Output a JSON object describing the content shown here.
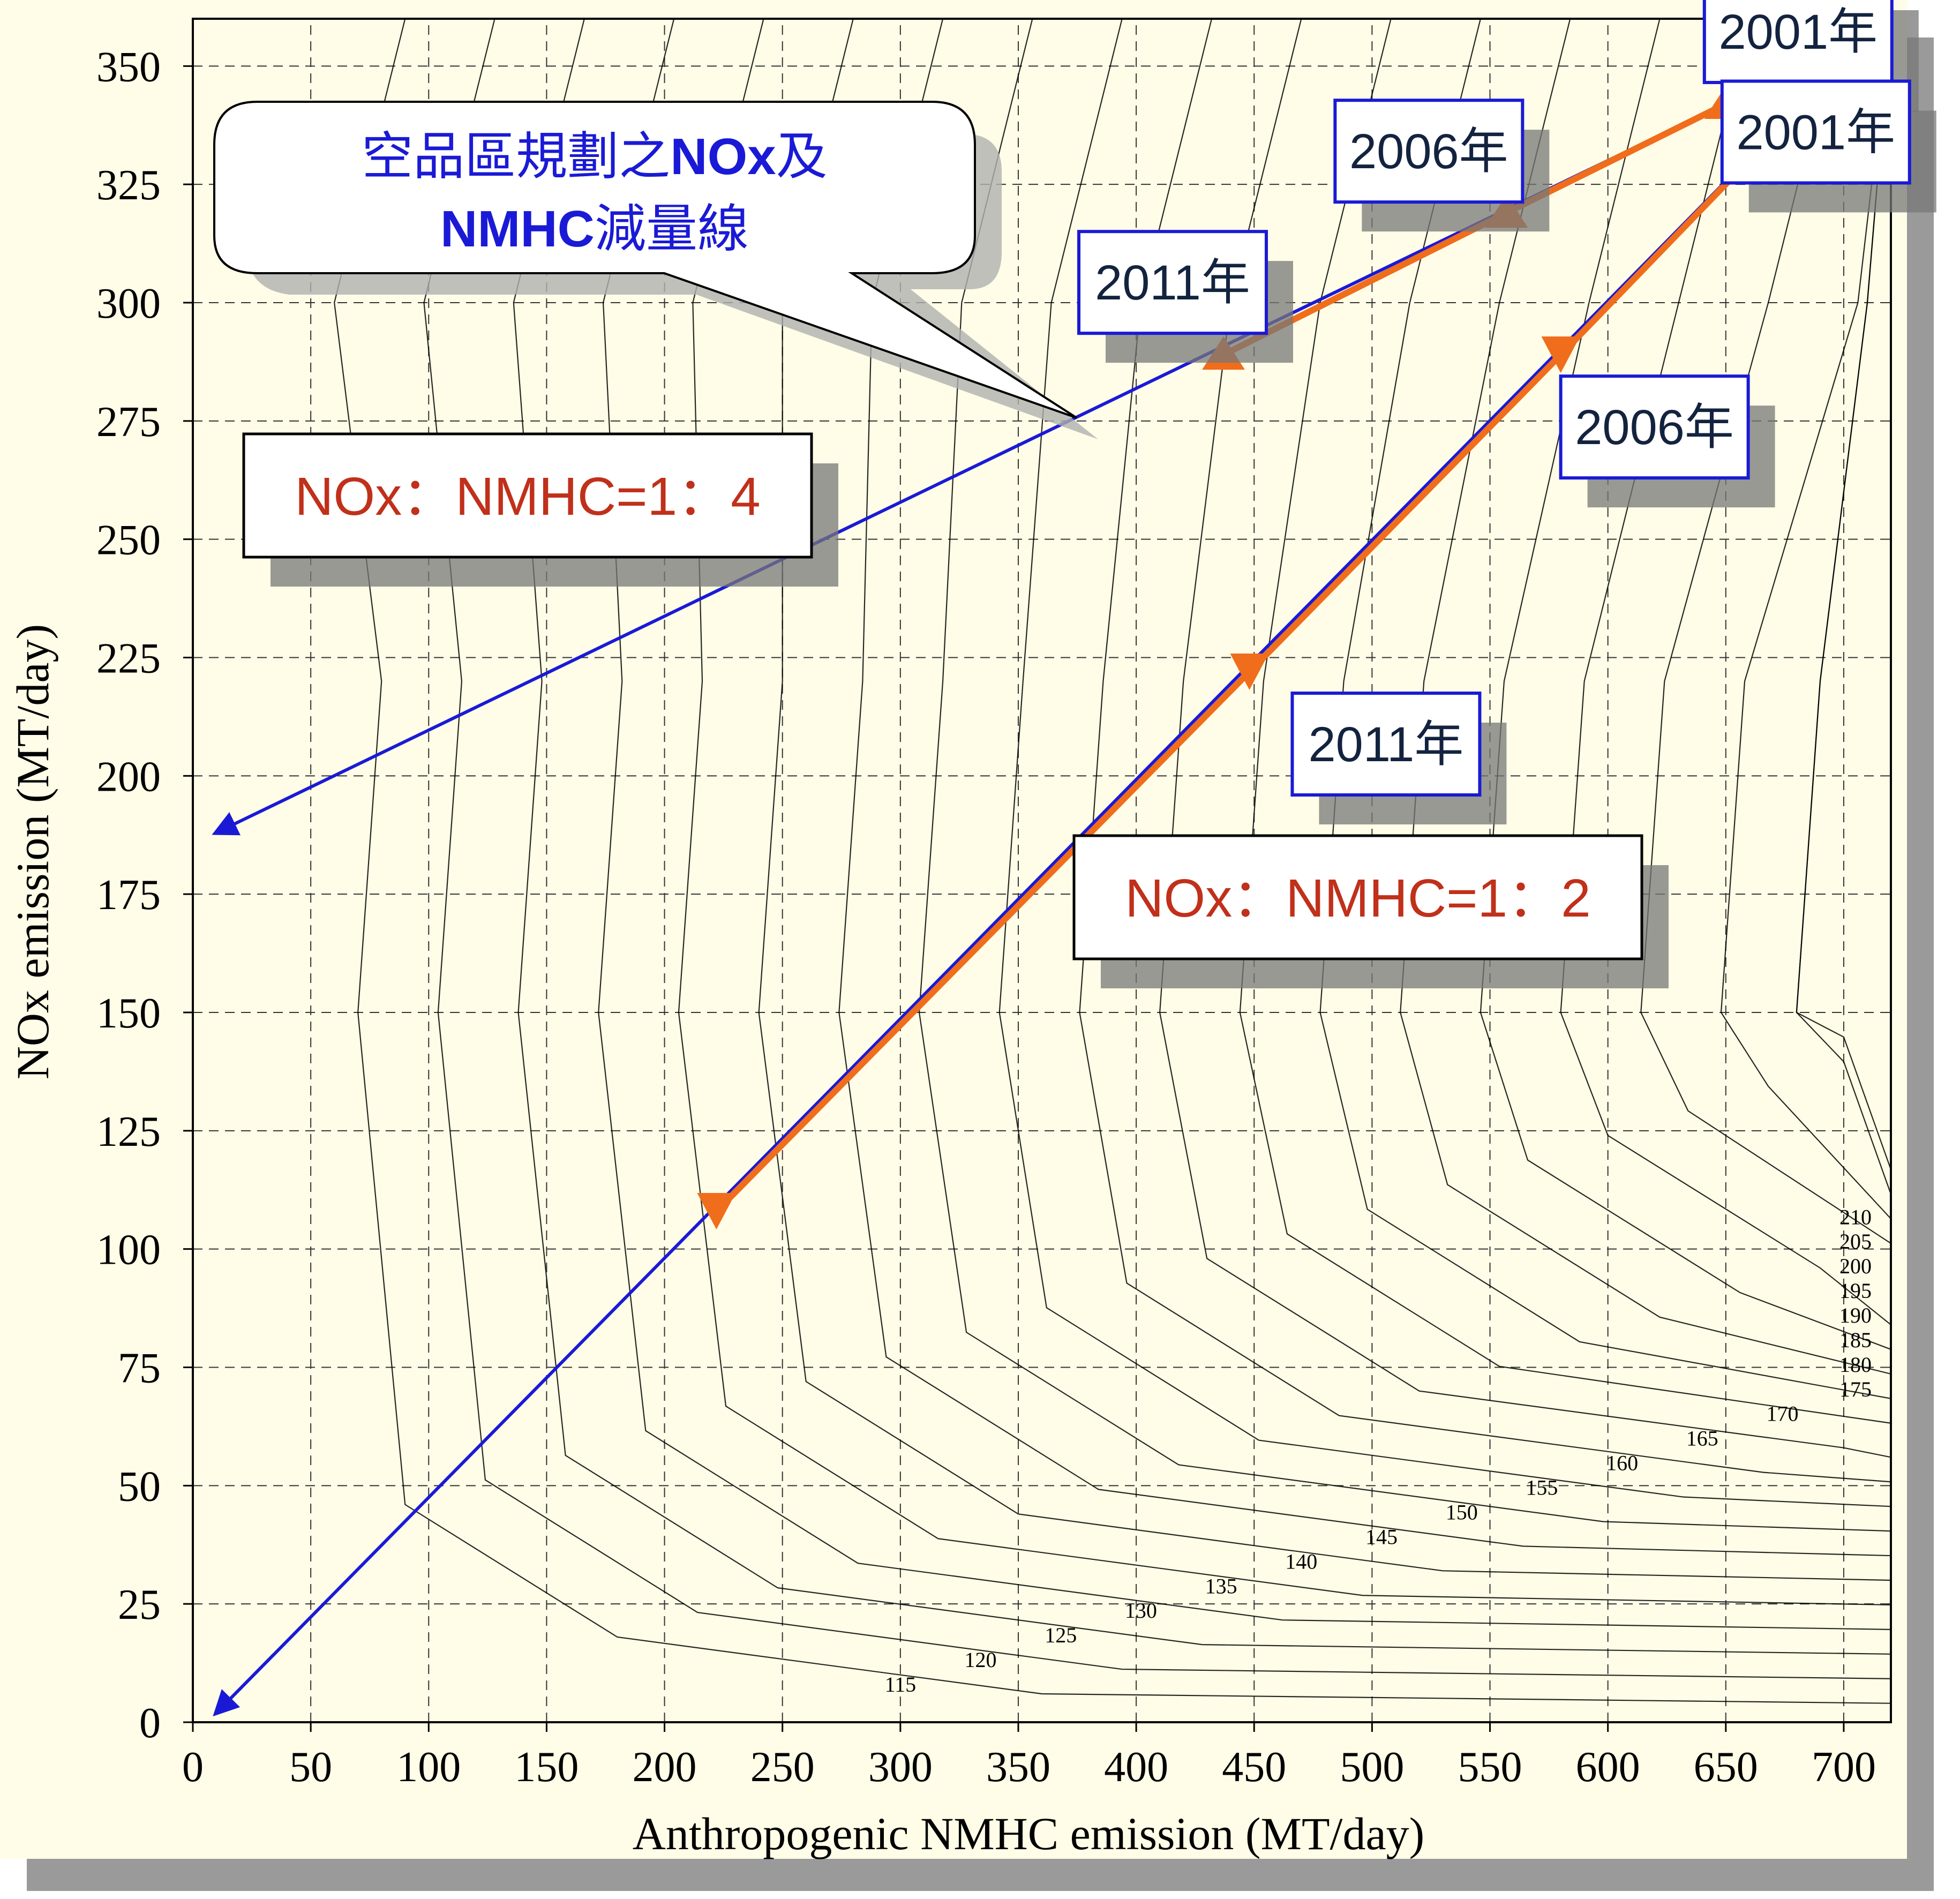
{
  "chart_data": {
    "type": "line",
    "xlabel": "Anthropogenic NMHC emission (MT/day)",
    "ylabel": "NOx emission (MT/day)",
    "xlim": [
      0,
      720
    ],
    "ylim": [
      0,
      360
    ],
    "x_ticks": [
      0,
      50,
      100,
      150,
      200,
      250,
      300,
      350,
      400,
      450,
      500,
      550,
      600,
      650,
      700
    ],
    "y_ticks": [
      0,
      25,
      50,
      75,
      100,
      125,
      150,
      175,
      200,
      225,
      250,
      275,
      300,
      325,
      350
    ],
    "grid": true,
    "callout": {
      "line1_a": "空品區規劃之",
      "line1_b": "NOx",
      "line1_c": "及",
      "line2_a": "NMHC",
      "line2_b": "減量線"
    },
    "reduction_lines": [
      {
        "label": "NOx：NMHC=1：4",
        "x": [
          712,
          10
        ],
        "y": [
          357,
          188
        ]
      },
      {
        "label": "NOx：NMHC=1：2",
        "x": [
          712,
          10
        ],
        "y": [
          357,
          2
        ]
      }
    ],
    "year_markers": [
      {
        "line": "1:4",
        "label": "2001年",
        "x": 650,
        "y": 342
      },
      {
        "line": "1:4",
        "label": "2006年",
        "x": 557,
        "y": 319
      },
      {
        "line": "1:4",
        "label": "2011年",
        "x": 437,
        "y": 289
      },
      {
        "line": "1:2",
        "label": "2001年",
        "x": 712,
        "y": 357
      },
      {
        "line": "1:2",
        "label": "2006年",
        "x": 580,
        "y": 289
      },
      {
        "line": "1:2",
        "label": "2011年",
        "x": 448,
        "y": 222
      },
      {
        "line": "1:2",
        "label": "",
        "x": 222,
        "y": 108
      }
    ],
    "contour_labels": [
      "115",
      "120",
      "125",
      "130",
      "135",
      "140",
      "145",
      "150",
      "155",
      "160",
      "165",
      "170",
      "175",
      "180",
      "185",
      "190",
      "195",
      "200",
      "205",
      "210"
    ],
    "colors": {
      "background": "#fffde7",
      "reduction_line": "#1a1ad6",
      "year_path": "#f06d1c",
      "ratio_text": "#c0301a",
      "callout_text": "#1a1ad6"
    }
  }
}
